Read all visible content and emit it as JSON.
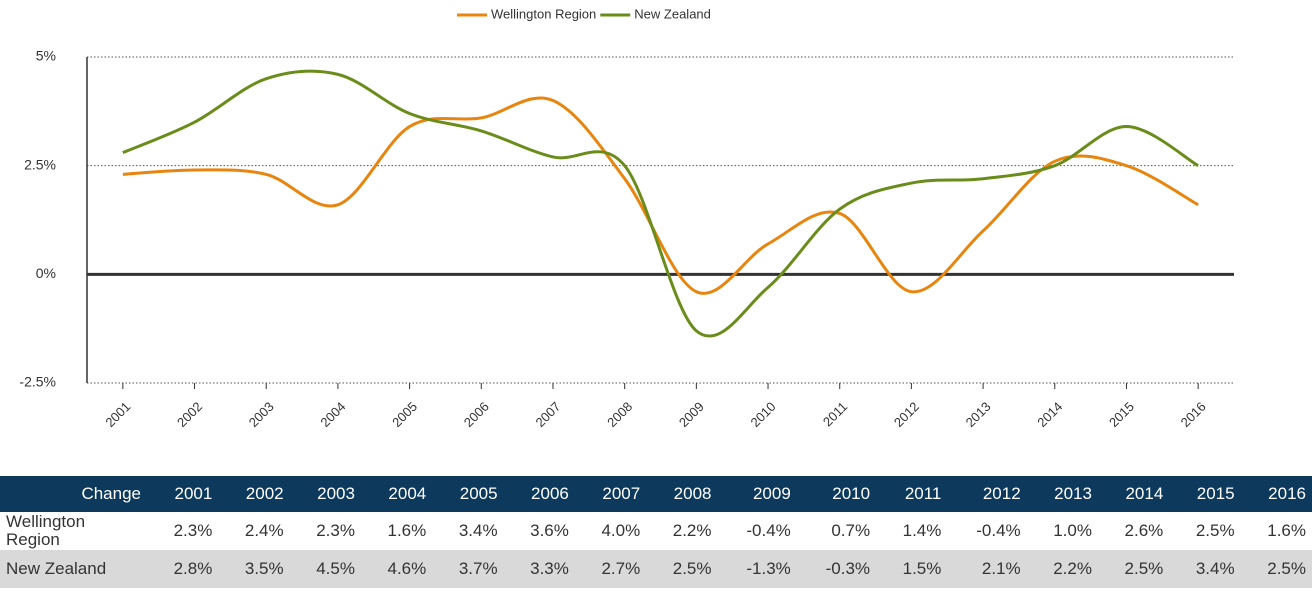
{
  "chart_data": {
    "type": "line",
    "categories": [
      "2001",
      "2002",
      "2003",
      "2004",
      "2005",
      "2006",
      "2007",
      "2008",
      "2009",
      "2010",
      "2011",
      "2012",
      "2013",
      "2014",
      "2015",
      "2016"
    ],
    "series": [
      {
        "name": "Wellington Region",
        "color": "#e8850f",
        "values": [
          2.3,
          2.4,
          2.3,
          1.6,
          3.4,
          3.6,
          4.0,
          2.2,
          -0.4,
          0.7,
          1.4,
          -0.4,
          1.0,
          2.6,
          2.5,
          1.6
        ]
      },
      {
        "name": "New Zealand",
        "color": "#6a8c1a",
        "values": [
          2.8,
          3.5,
          4.5,
          4.6,
          3.7,
          3.3,
          2.7,
          2.5,
          -1.3,
          -0.3,
          1.5,
          2.1,
          2.2,
          2.5,
          3.4,
          2.5
        ]
      }
    ],
    "ylim": [
      -2.5,
      5
    ],
    "yticks": [
      {
        "value": -2.5,
        "label": "-2.5%"
      },
      {
        "value": 0,
        "label": "0%"
      },
      {
        "value": 2.5,
        "label": "2.5%"
      },
      {
        "value": 5,
        "label": "5%"
      }
    ],
    "grid": true,
    "legend": "top"
  },
  "table": {
    "header": [
      "Change",
      "2001",
      "2002",
      "2003",
      "2004",
      "2005",
      "2006",
      "2007",
      "2008",
      "2009",
      "2010",
      "2011",
      "2012",
      "2013",
      "2014",
      "2015",
      "2016"
    ],
    "rows": [
      [
        "Wellington Region",
        "2.3%",
        "2.4%",
        "2.3%",
        "1.6%",
        "3.4%",
        "3.6%",
        "4.0%",
        "2.2%",
        "-0.4%",
        "0.7%",
        "1.4%",
        "-0.4%",
        "1.0%",
        "2.6%",
        "2.5%",
        "1.6%"
      ],
      [
        "New Zealand",
        "2.8%",
        "3.5%",
        "4.5%",
        "4.6%",
        "3.7%",
        "3.3%",
        "2.7%",
        "2.5%",
        "-1.3%",
        "-0.3%",
        "1.5%",
        "2.1%",
        "2.2%",
        "2.5%",
        "3.4%",
        "2.5%"
      ]
    ]
  }
}
